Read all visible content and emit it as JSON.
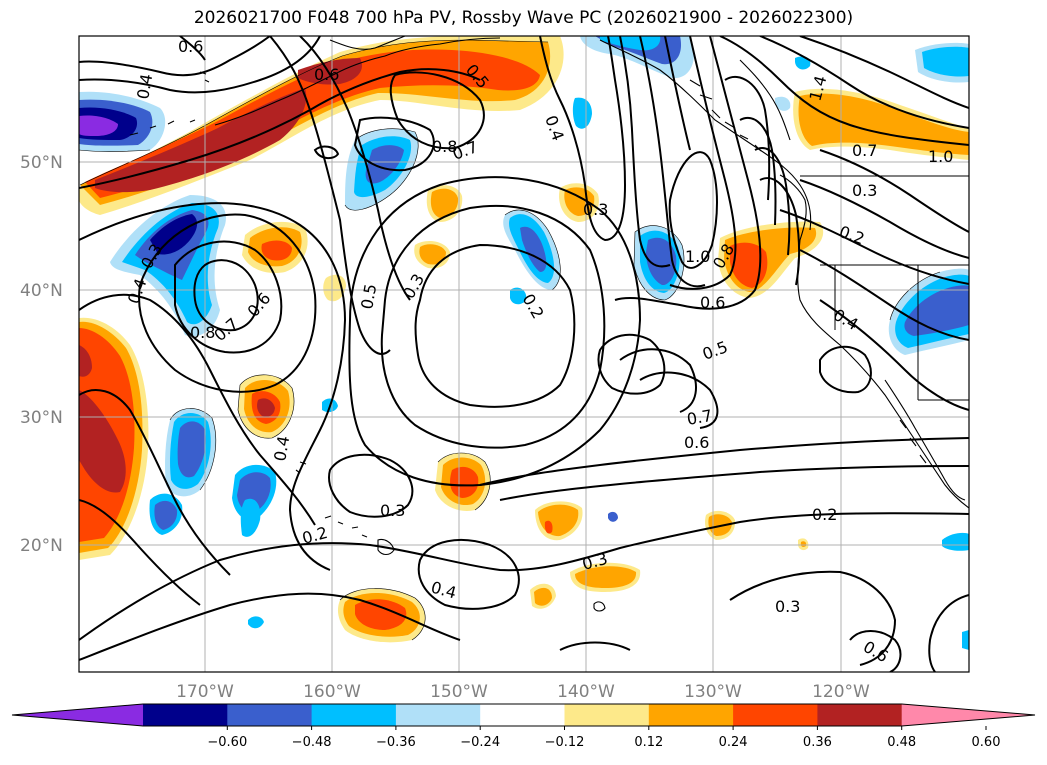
{
  "title": "2026021700 F048 700 hPa PV, Rossby Wave PC (2026021900 - 2026022300)",
  "lat_labels": [
    "50°N",
    "40°N",
    "30°N",
    "20°N"
  ],
  "lon_labels": [
    "170°W",
    "160°W",
    "150°W",
    "140°W",
    "130°W",
    "120°W"
  ],
  "colorbar": {
    "ticks": [
      "−0.60",
      "−0.48",
      "−0.36",
      "−0.24",
      "−0.12",
      "0.12",
      "0.24",
      "0.36",
      "0.48",
      "0.60"
    ],
    "colors": [
      "#8a2be2",
      "#00008b",
      "#3a5fcd",
      "#00bfff",
      "#b0e0f8",
      "#ffffff",
      "#fde98a",
      "#ffa500",
      "#ff4500",
      "#b22222",
      "#ff88aa"
    ]
  },
  "contour_labels": [
    "0.6",
    "0.4",
    "0.6",
    "0.5",
    "0.4",
    "0.8",
    "0.7",
    "0.3",
    "1.0",
    "0.8",
    "0.6",
    "0.5",
    "0.7",
    "0.6",
    "1.4",
    "0.7",
    "1.0",
    "0.3",
    "0.2",
    "0.4",
    "0.3",
    "0.5",
    "0.2",
    "0.8",
    "0.7",
    "0.6",
    "0.4",
    "0.3",
    "0.4",
    "0.3",
    "0.2",
    "0.4",
    "0.3",
    "0.2",
    "0.3",
    "0.6"
  ]
}
